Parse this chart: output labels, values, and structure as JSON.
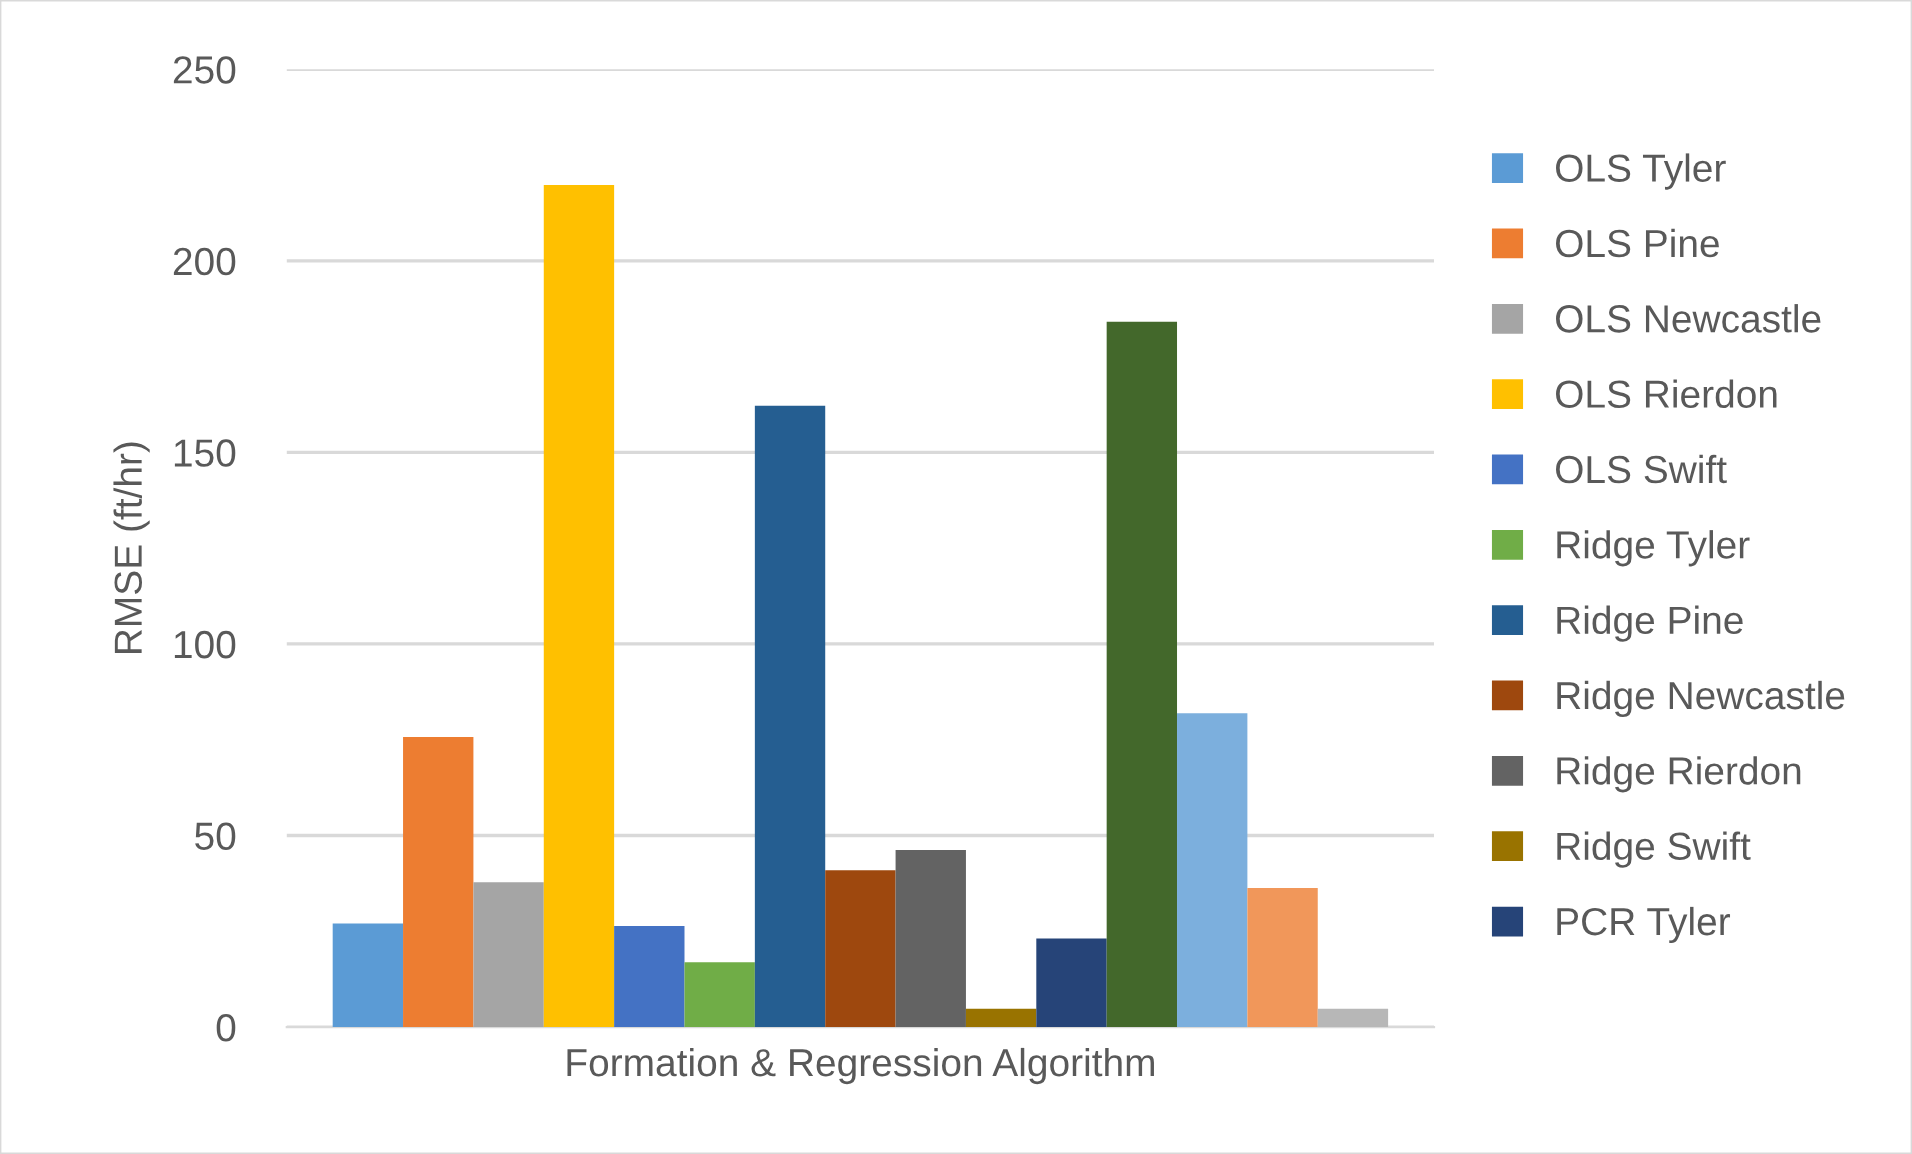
{
  "chart_data": {
    "type": "bar",
    "ylabel": "RMSE (ft/hr)",
    "xlabel": "Formation & Regression Algorithm",
    "categories": [
      null
    ],
    "ylim": [
      0,
      250
    ],
    "yticks": [
      0,
      50,
      100,
      150,
      200,
      250
    ],
    "grid": "y",
    "legend": "right",
    "series": [
      {
        "name": "OLS Tyler",
        "color": "#5b9bd5",
        "values": [
          27.0
        ]
      },
      {
        "name": "OLS Pine",
        "color": "#ed7d31",
        "values": [
          75.7
        ]
      },
      {
        "name": "OLS Newcastle",
        "color": "#a5a5a5",
        "values": [
          37.8
        ]
      },
      {
        "name": "OLS Rierdon",
        "color": "#ffc000",
        "values": [
          219.8
        ]
      },
      {
        "name": "OLS Swift",
        "color": "#4472c4",
        "values": [
          26.4
        ]
      },
      {
        "name": "Ridge Tyler",
        "color": "#70ad47",
        "values": [
          16.9
        ]
      },
      {
        "name": "Ridge Pine",
        "color": "#255e91",
        "values": [
          162.2
        ]
      },
      {
        "name": "Ridge Newcastle",
        "color": "#9e480e",
        "values": [
          40.9
        ]
      },
      {
        "name": "Ridge Rierdon",
        "color": "#636363",
        "values": [
          46.2
        ]
      },
      {
        "name": "Ridge Swift",
        "color": "#997300",
        "values": [
          4.8
        ]
      },
      {
        "name": "PCR Tyler",
        "color": "#264478",
        "values": [
          23.1
        ]
      },
      {
        "color": "#43682b",
        "values": [
          184.1
        ]
      },
      {
        "color": "#7cafdd",
        "values": [
          81.9
        ]
      },
      {
        "color": "#f1975a",
        "values": [
          36.3
        ]
      },
      {
        "color": "#b7b7b7",
        "values": [
          4.8
        ]
      }
    ]
  }
}
